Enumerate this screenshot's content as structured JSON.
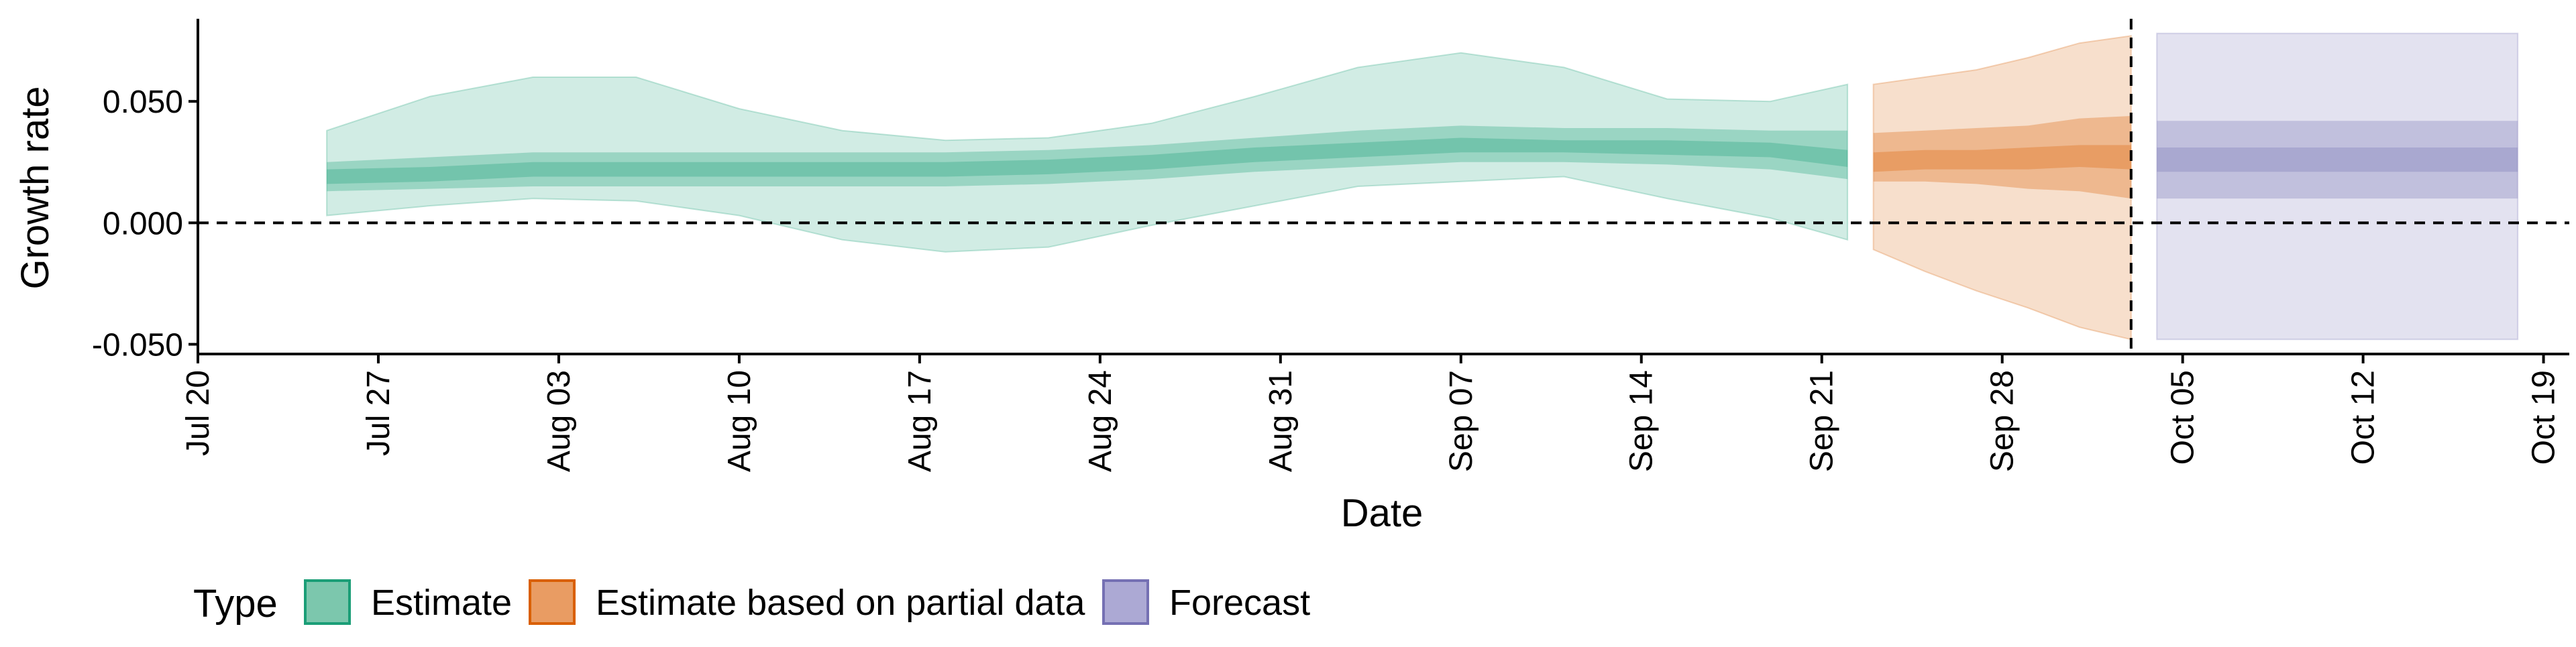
{
  "chart_data": {
    "type": "area",
    "xlabel": "Date",
    "ylabel": "Growth rate",
    "x_ticks": [
      "Jul 20",
      "Jul 27",
      "Aug 03",
      "Aug 10",
      "Aug 17",
      "Aug 24",
      "Aug 31",
      "Sep 07",
      "Sep 14",
      "Sep 21",
      "Sep 28",
      "Oct 05",
      "Oct 12",
      "Oct 19"
    ],
    "y_ticks": [
      "0.050",
      "0.000",
      "-0.050"
    ],
    "y_tick_values": [
      0.05,
      0.0,
      -0.05
    ],
    "ylim": [
      -0.054,
      0.084
    ],
    "xlim": [
      "2021-07-19",
      "2021-10-19"
    ],
    "reference_lines": {
      "y": 0.0,
      "x": "2021-10-02"
    },
    "legend": {
      "title": "Type",
      "position": "bottom",
      "entries": [
        "Estimate",
        "Estimate based on partial data",
        "Forecast"
      ]
    },
    "colors": {
      "estimate_fill": "#1b9e77",
      "estimate_border": "#1b9e77",
      "partial_fill": "#d95f02",
      "partial_border": "#d95f02",
      "forecast_fill": "#7570b3",
      "forecast_border": "#7570b3",
      "axis": "#000000"
    },
    "series": [
      {
        "name": "Estimate",
        "x": [
          "2021-07-24",
          "2021-07-28",
          "2021-08-01",
          "2021-08-05",
          "2021-08-09",
          "2021-08-13",
          "2021-08-17",
          "2021-08-21",
          "2021-08-25",
          "2021-08-29",
          "2021-09-02",
          "2021-09-06",
          "2021-09-10",
          "2021-09-14",
          "2021-09-18",
          "2021-09-21"
        ],
        "median": [
          0.019,
          0.02,
          0.022,
          0.022,
          0.022,
          0.022,
          0.022,
          0.023,
          0.025,
          0.028,
          0.03,
          0.032,
          0.031,
          0.031,
          0.03,
          0.026
        ],
        "lower_20": [
          0.016,
          0.017,
          0.019,
          0.019,
          0.019,
          0.019,
          0.019,
          0.02,
          0.022,
          0.025,
          0.027,
          0.029,
          0.029,
          0.028,
          0.027,
          0.023
        ],
        "upper_20": [
          0.022,
          0.023,
          0.025,
          0.025,
          0.025,
          0.025,
          0.025,
          0.026,
          0.028,
          0.031,
          0.033,
          0.035,
          0.034,
          0.034,
          0.033,
          0.03
        ],
        "lower_50": [
          0.013,
          0.014,
          0.015,
          0.015,
          0.015,
          0.015,
          0.015,
          0.016,
          0.018,
          0.021,
          0.023,
          0.025,
          0.025,
          0.024,
          0.022,
          0.018
        ],
        "upper_50": [
          0.025,
          0.027,
          0.029,
          0.029,
          0.029,
          0.029,
          0.029,
          0.03,
          0.032,
          0.035,
          0.038,
          0.04,
          0.039,
          0.039,
          0.038,
          0.038
        ],
        "lower_90": [
          0.003,
          0.007,
          0.01,
          0.009,
          0.003,
          -0.007,
          -0.012,
          -0.01,
          -0.001,
          0.007,
          0.015,
          0.017,
          0.019,
          0.01,
          0.002,
          -0.007
        ],
        "upper_90": [
          0.038,
          0.052,
          0.06,
          0.06,
          0.047,
          0.038,
          0.034,
          0.035,
          0.041,
          0.052,
          0.064,
          0.07,
          0.064,
          0.051,
          0.05,
          0.057
        ]
      },
      {
        "name": "Estimate based on partial data",
        "x": [
          "2021-09-22",
          "2021-09-24",
          "2021-09-26",
          "2021-09-28",
          "2021-09-30",
          "2021-10-02"
        ],
        "median": [
          0.025,
          0.026,
          0.026,
          0.027,
          0.028,
          0.027
        ],
        "lower_20": [
          0.021,
          0.022,
          0.022,
          0.022,
          0.023,
          0.022
        ],
        "upper_20": [
          0.029,
          0.03,
          0.03,
          0.031,
          0.032,
          0.032
        ],
        "lower_50": [
          0.017,
          0.017,
          0.016,
          0.014,
          0.013,
          0.01
        ],
        "upper_50": [
          0.037,
          0.038,
          0.039,
          0.04,
          0.043,
          0.044
        ],
        "lower_90": [
          -0.011,
          -0.02,
          -0.028,
          -0.035,
          -0.043,
          -0.048
        ],
        "upper_90": [
          0.057,
          0.06,
          0.063,
          0.068,
          0.074,
          0.077
        ]
      },
      {
        "name": "Forecast",
        "x": [
          "2021-10-03",
          "2021-10-17"
        ],
        "median": [
          0.026,
          0.026
        ],
        "lower_20": [
          0.021,
          0.021
        ],
        "upper_20": [
          0.031,
          0.031
        ],
        "lower_50": [
          0.01,
          0.01
        ],
        "upper_50": [
          0.042,
          0.042
        ],
        "lower_90": [
          -0.048,
          -0.048
        ],
        "upper_90": [
          0.078,
          0.078
        ]
      }
    ]
  }
}
